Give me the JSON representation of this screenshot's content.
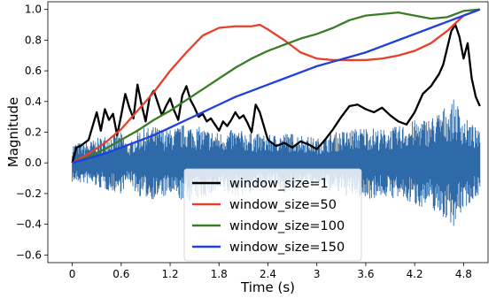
{
  "chart_data": {
    "type": "line",
    "xlabel": "Time (s)",
    "ylabel": "Magnitude",
    "xlim": [
      -0.3,
      5.1
    ],
    "ylim": [
      -0.65,
      1.05
    ],
    "xticks": [
      "0",
      "0.6",
      "1.2",
      "1.8",
      "2.4",
      "3",
      "3.6",
      "4.2",
      "4.8"
    ],
    "yticks": [
      "−0.6",
      "−0.4",
      "−0.2",
      "0.0",
      "0.2",
      "0.4",
      "0.6",
      "0.8",
      "1.0"
    ],
    "grid": false,
    "legend_position": "lower-center",
    "waveform": {
      "color": "#2f6aa8",
      "x_start": 0.0,
      "x_end": 5.0,
      "envelope": [
        [
          0.0,
          0.13
        ],
        [
          0.2,
          0.14
        ],
        [
          0.4,
          0.18
        ],
        [
          0.6,
          0.2
        ],
        [
          0.7,
          0.12
        ],
        [
          0.8,
          0.22
        ],
        [
          1.0,
          0.24
        ],
        [
          1.2,
          0.22
        ],
        [
          1.4,
          0.26
        ],
        [
          1.6,
          0.23
        ],
        [
          1.8,
          0.2
        ],
        [
          2.0,
          0.22
        ],
        [
          2.2,
          0.2
        ],
        [
          2.4,
          0.18
        ],
        [
          2.6,
          0.2
        ],
        [
          2.8,
          0.19
        ],
        [
          3.0,
          0.16
        ],
        [
          3.2,
          0.2
        ],
        [
          3.4,
          0.22
        ],
        [
          3.6,
          0.24
        ],
        [
          3.8,
          0.22
        ],
        [
          4.0,
          0.24
        ],
        [
          4.2,
          0.28
        ],
        [
          4.4,
          0.3
        ],
        [
          4.6,
          0.38
        ],
        [
          4.7,
          0.42
        ],
        [
          4.8,
          0.3
        ],
        [
          4.9,
          0.26
        ],
        [
          5.0,
          0.2
        ]
      ]
    },
    "series": [
      {
        "name": "window_size=1",
        "color": "#000000",
        "x": [
          0.0,
          0.05,
          0.1,
          0.2,
          0.3,
          0.35,
          0.4,
          0.45,
          0.5,
          0.55,
          0.6,
          0.65,
          0.7,
          0.75,
          0.8,
          0.85,
          0.9,
          0.95,
          1.0,
          1.05,
          1.1,
          1.15,
          1.2,
          1.25,
          1.3,
          1.35,
          1.4,
          1.45,
          1.5,
          1.55,
          1.6,
          1.65,
          1.7,
          1.75,
          1.8,
          1.85,
          1.9,
          1.95,
          2.0,
          2.05,
          2.1,
          2.15,
          2.2,
          2.25,
          2.3,
          2.4,
          2.5,
          2.6,
          2.7,
          2.8,
          2.9,
          3.0,
          3.1,
          3.2,
          3.3,
          3.4,
          3.5,
          3.6,
          3.7,
          3.8,
          3.9,
          4.0,
          4.1,
          4.2,
          4.3,
          4.4,
          4.5,
          4.55,
          4.6,
          4.65,
          4.7,
          4.75,
          4.8,
          4.85,
          4.9,
          4.95,
          5.0
        ],
        "y": [
          0.0,
          0.1,
          0.11,
          0.15,
          0.33,
          0.21,
          0.35,
          0.28,
          0.32,
          0.18,
          0.31,
          0.45,
          0.36,
          0.29,
          0.51,
          0.38,
          0.27,
          0.43,
          0.47,
          0.39,
          0.31,
          0.37,
          0.42,
          0.34,
          0.28,
          0.44,
          0.5,
          0.41,
          0.36,
          0.3,
          0.32,
          0.27,
          0.29,
          0.25,
          0.21,
          0.27,
          0.24,
          0.28,
          0.33,
          0.29,
          0.31,
          0.26,
          0.2,
          0.38,
          0.33,
          0.15,
          0.11,
          0.13,
          0.1,
          0.14,
          0.12,
          0.09,
          0.15,
          0.22,
          0.3,
          0.37,
          0.38,
          0.35,
          0.33,
          0.36,
          0.31,
          0.27,
          0.25,
          0.33,
          0.45,
          0.5,
          0.58,
          0.64,
          0.75,
          0.86,
          0.9,
          0.82,
          0.68,
          0.78,
          0.55,
          0.43,
          0.37
        ]
      },
      {
        "name": "window_size=50",
        "color": "#e6402a",
        "x": [
          0.0,
          0.2,
          0.4,
          0.6,
          0.8,
          1.0,
          1.2,
          1.4,
          1.6,
          1.8,
          2.0,
          2.2,
          2.3,
          2.4,
          2.6,
          2.8,
          3.0,
          3.2,
          3.4,
          3.6,
          3.8,
          4.0,
          4.2,
          4.4,
          4.6,
          4.8,
          5.0
        ],
        "y": [
          0.0,
          0.06,
          0.13,
          0.22,
          0.34,
          0.46,
          0.6,
          0.72,
          0.83,
          0.88,
          0.89,
          0.89,
          0.9,
          0.87,
          0.8,
          0.72,
          0.68,
          0.67,
          0.67,
          0.67,
          0.68,
          0.7,
          0.73,
          0.78,
          0.86,
          0.96,
          1.0
        ]
      },
      {
        "name": "window_size=100",
        "color": "#3a7d24",
        "x": [
          0.0,
          0.2,
          0.4,
          0.6,
          0.8,
          1.0,
          1.2,
          1.4,
          1.6,
          1.8,
          2.0,
          2.2,
          2.4,
          2.6,
          2.8,
          3.0,
          3.2,
          3.4,
          3.6,
          3.8,
          4.0,
          4.2,
          4.4,
          4.6,
          4.8,
          5.0
        ],
        "y": [
          0.0,
          0.04,
          0.09,
          0.15,
          0.21,
          0.28,
          0.34,
          0.41,
          0.48,
          0.55,
          0.62,
          0.68,
          0.73,
          0.77,
          0.81,
          0.84,
          0.88,
          0.93,
          0.96,
          0.97,
          0.98,
          0.96,
          0.94,
          0.95,
          0.99,
          1.0
        ]
      },
      {
        "name": "window_size=150",
        "color": "#1f3fe0",
        "x": [
          0.0,
          0.2,
          0.4,
          0.6,
          0.8,
          1.0,
          1.2,
          1.4,
          1.6,
          1.8,
          2.0,
          2.2,
          2.4,
          2.6,
          2.8,
          3.0,
          3.2,
          3.4,
          3.6,
          3.8,
          4.0,
          4.2,
          4.4,
          4.6,
          4.8,
          5.0
        ],
        "y": [
          0.0,
          0.03,
          0.06,
          0.1,
          0.14,
          0.18,
          0.23,
          0.28,
          0.33,
          0.38,
          0.43,
          0.47,
          0.51,
          0.55,
          0.59,
          0.63,
          0.66,
          0.69,
          0.72,
          0.76,
          0.8,
          0.84,
          0.88,
          0.92,
          0.96,
          1.0
        ]
      }
    ]
  }
}
